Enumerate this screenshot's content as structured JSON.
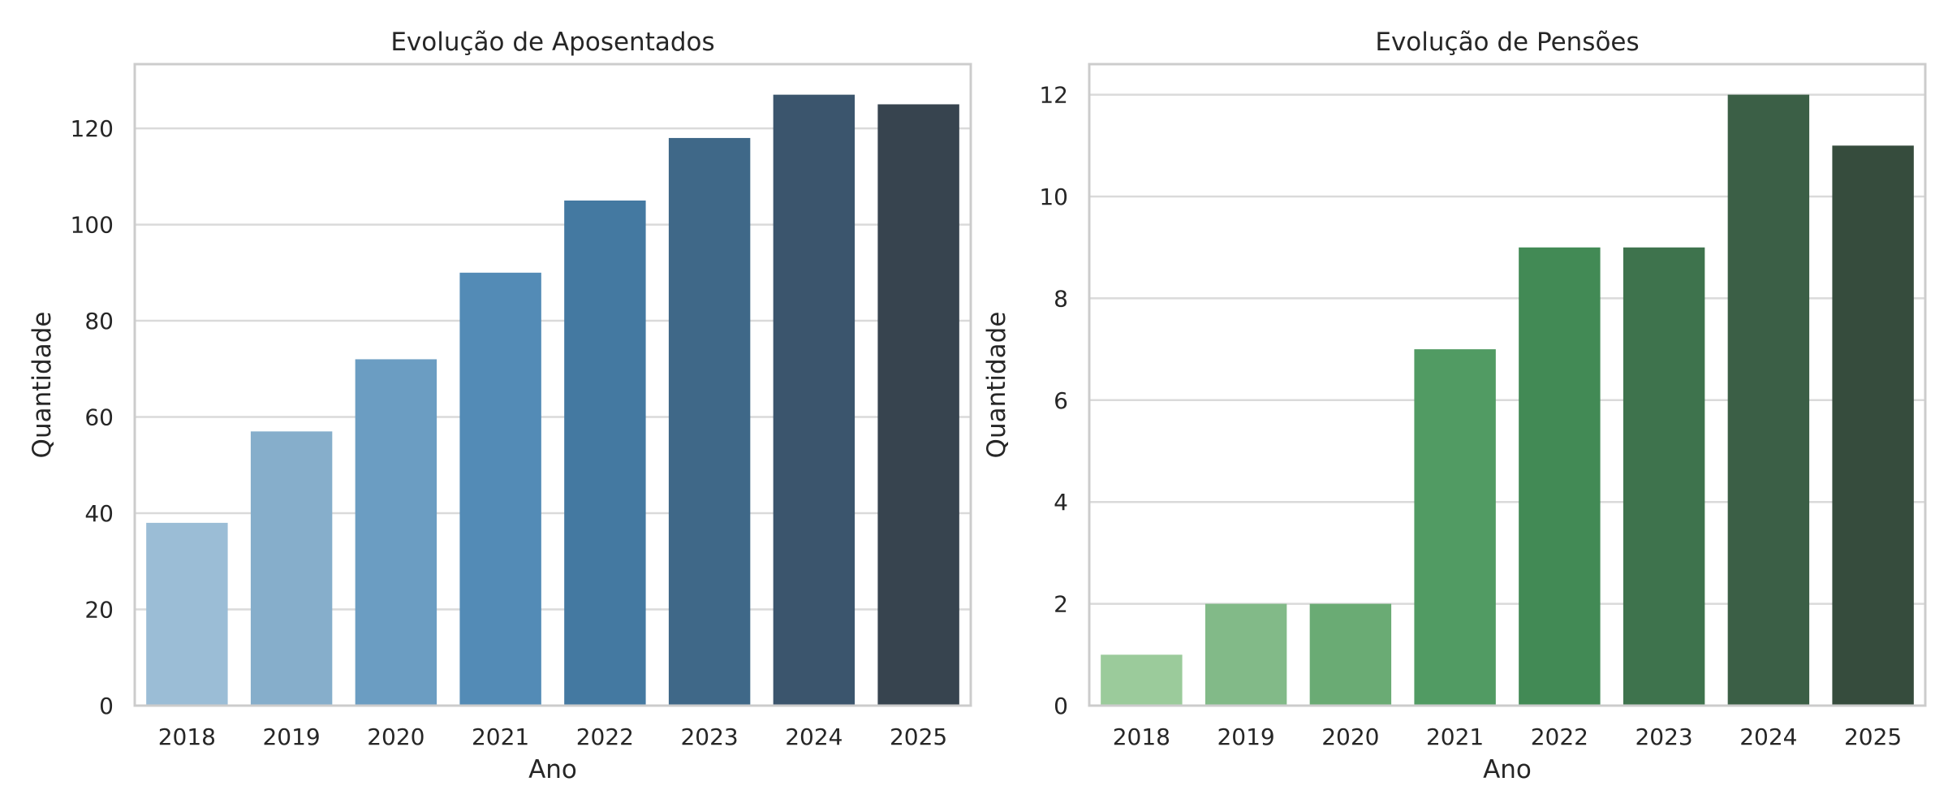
{
  "chart_data": [
    {
      "type": "bar",
      "title": "Evolução de Aposentados",
      "xlabel": "Ano",
      "ylabel": "Quantidade",
      "categories": [
        "2018",
        "2019",
        "2020",
        "2021",
        "2022",
        "2023",
        "2024",
        "2025"
      ],
      "values": [
        38,
        57,
        72,
        90,
        105,
        118,
        127,
        125
      ],
      "ylim": [
        0,
        133.35
      ],
      "yticks": [
        0,
        20,
        40,
        60,
        80,
        100,
        120
      ],
      "grid": "horizontal",
      "colors": [
        "#9bbdd6",
        "#86aecb",
        "#6b9dc2",
        "#538bb6",
        "#4479a1",
        "#3f6888",
        "#3b556d",
        "#37444f"
      ]
    },
    {
      "type": "bar",
      "title": "Evolução de Pensões",
      "xlabel": "Ano",
      "ylabel": "Quantidade",
      "categories": [
        "2018",
        "2019",
        "2020",
        "2021",
        "2022",
        "2023",
        "2024",
        "2025"
      ],
      "values": [
        1,
        2,
        2,
        7,
        9,
        9,
        12,
        11
      ],
      "ylim": [
        0,
        12.6
      ],
      "yticks": [
        0,
        2,
        4,
        6,
        8,
        10,
        12
      ],
      "grid": "horizontal",
      "colors": [
        "#9bcb9b",
        "#82ba88",
        "#6aab74",
        "#519b63",
        "#428a55",
        "#3e734d",
        "#3b5f46",
        "#364c3d"
      ]
    }
  ]
}
